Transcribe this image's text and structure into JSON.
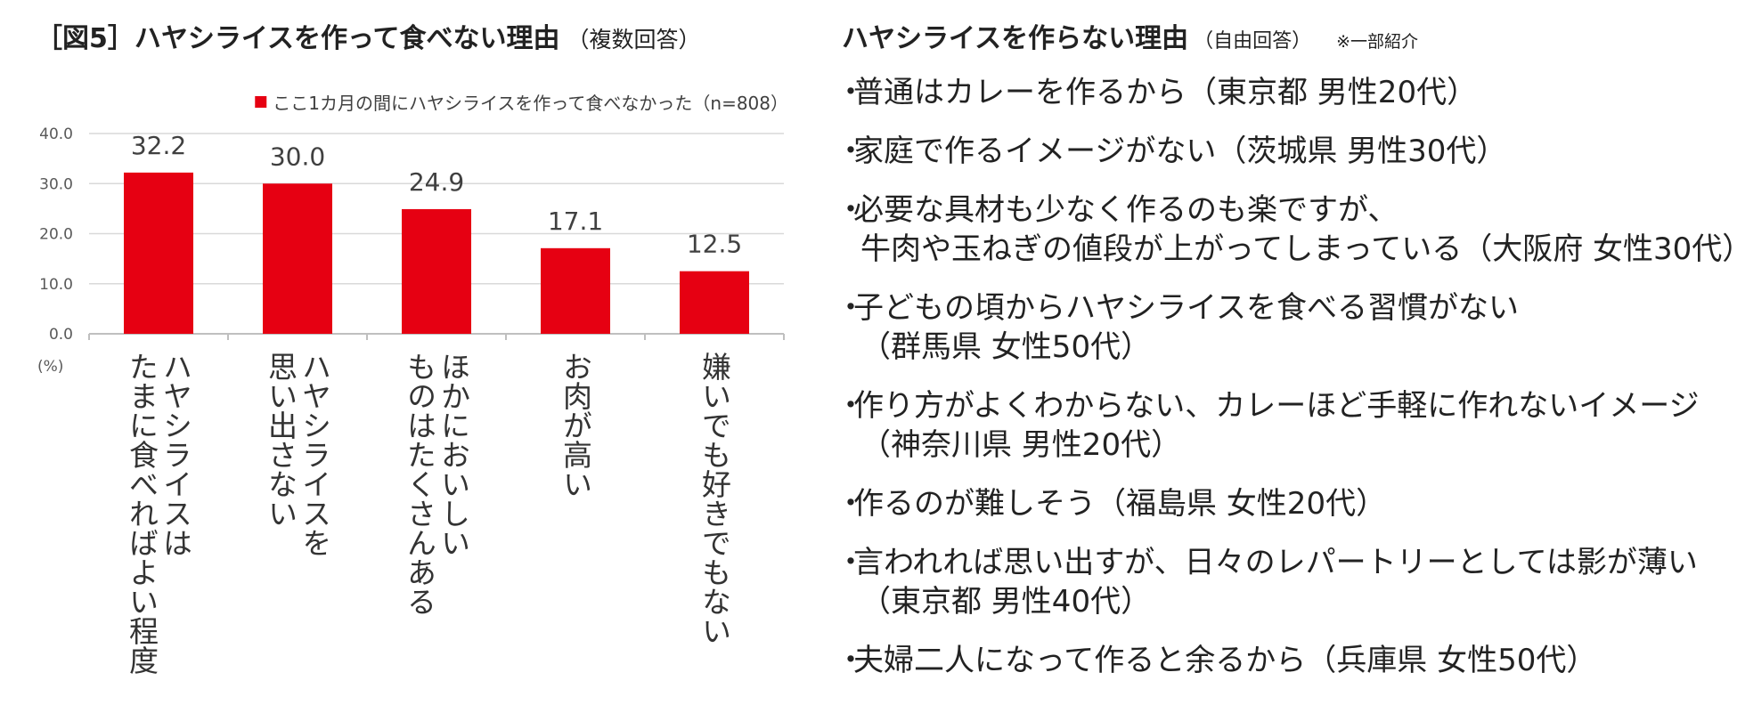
{
  "left": {
    "title": "［図5］ハヤシライスを作って食べない理由",
    "subtitle": "（複数回答）"
  },
  "chart_data": {
    "type": "bar",
    "legend": "ここ1カ月の間にハヤシライスを作って食べなかった（n=808）",
    "legend_position": "top-right",
    "ylabel": "(%)",
    "ylim": [
      0,
      40
    ],
    "yticks": [
      "0.0",
      "10.0",
      "20.0",
      "30.0",
      "40.0"
    ],
    "grid": true,
    "color": "#e60012",
    "categories": [
      [
        "ハヤシライスは",
        "たまに食べればよい程度"
      ],
      [
        "ハヤシライスを",
        "思い出さない"
      ],
      [
        "ほかにおいしい",
        "ものはたくさんある"
      ],
      [
        "お肉が高い"
      ],
      [
        "嫌いでも好きでもない"
      ]
    ],
    "values": [
      32.2,
      30.0,
      24.9,
      17.1,
      12.5
    ],
    "value_labels": [
      "32.2",
      "30.0",
      "24.9",
      "17.1",
      "12.5"
    ]
  },
  "right": {
    "title": "ハヤシライスを作らない理由",
    "subtitle": "（自由回答）",
    "note": "※一部紹介",
    "bullet": "・",
    "reasons": [
      {
        "lines": [
          "普通はカレーを作るから（東京都 男性20代）"
        ]
      },
      {
        "lines": [
          "家庭で作るイメージがない（茨城県 男性30代）"
        ]
      },
      {
        "lines": [
          "必要な具材も少なく作るのも楽ですが、",
          "牛肉や玉ねぎの値段が上がってしまっている（大阪府 女性30代）"
        ]
      },
      {
        "lines": [
          "子どもの頃からハヤシライスを食べる習慣がない",
          "（群馬県 女性50代）"
        ]
      },
      {
        "lines": [
          "作り方がよくわからない、カレーほど手軽に作れないイメージ",
          "（神奈川県 男性20代）"
        ]
      },
      {
        "lines": [
          "作るのが難しそう（福島県 女性20代）"
        ]
      },
      {
        "lines": [
          "言われれば思い出すが、日々のレパートリーとしては影が薄い",
          "（東京都 男性40代）"
        ]
      },
      {
        "lines": [
          "夫婦二人になって作ると余るから（兵庫県 女性50代）"
        ]
      }
    ]
  }
}
